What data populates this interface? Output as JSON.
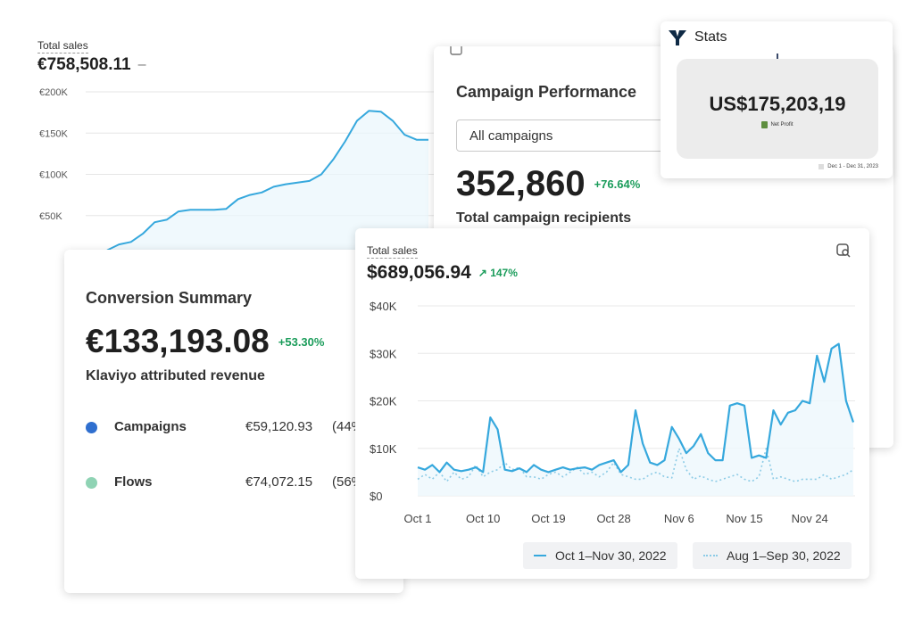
{
  "card_eur_sales": {
    "label": "Total sales",
    "amount": "€758,508.11",
    "dash": "–"
  },
  "card_campaign": {
    "title": "Campaign Performance",
    "select_value": "All campaigns",
    "amount": "352,860",
    "change": "+76.64%",
    "subtitle": "Total campaign recipients"
  },
  "card_stats": {
    "title": "Stats",
    "amount": "US$175,203,19",
    "caption": "Net Profit",
    "date_range": "Dec 1 - Dec 31, 2023"
  },
  "card_conversion": {
    "title": "Conversion Summary",
    "amount": "€133,193.08",
    "change": "+53.30%",
    "subtitle": "Klaviyo attributed revenue",
    "rows": [
      {
        "name": "Campaigns",
        "value": "€59,120.93",
        "pct": "(44%",
        "color": "#2f6fcf"
      },
      {
        "name": "Flows",
        "value": "€74,072.15",
        "pct": "(56%",
        "color": "#8fd3b4"
      }
    ]
  },
  "card_usd_sales": {
    "label": "Total sales",
    "amount": "$689,056.94",
    "change": "147%",
    "legend": {
      "current": "Oct 1–Nov 30, 2022",
      "previous": "Aug 1–Sep 30, 2022"
    }
  },
  "colors": {
    "line_primary": "#36a8dd",
    "line_secondary": "#8ccbe6",
    "accent_green": "#1a9c5a"
  },
  "chart_data": [
    {
      "type": "area",
      "title": "Total sales",
      "ylim": [
        0,
        200000
      ],
      "yticks": [
        "€200K",
        "€150K",
        "€100K",
        "€50K"
      ],
      "ytick_values": [
        200000,
        150000,
        100000,
        50000
      ],
      "x": [
        0,
        1,
        2,
        3,
        4,
        5,
        6,
        7,
        8,
        9,
        10,
        11,
        12,
        13,
        14,
        15,
        16,
        17,
        18,
        19,
        20,
        21,
        22,
        23,
        24,
        25,
        26,
        27
      ],
      "series": [
        {
          "values": [
            8000,
            15000,
            18000,
            28000,
            42000,
            45000,
            55000,
            57000,
            57000,
            57000,
            58000,
            70000,
            75000,
            78000,
            85000,
            88000,
            90000,
            92000,
            100000,
            118000,
            140000,
            165000,
            177000,
            176000,
            165000,
            148000,
            142000,
            142000
          ]
        }
      ]
    },
    {
      "type": "line",
      "title": "Total sales",
      "ylim": [
        0,
        40000
      ],
      "yticks": [
        "$40K",
        "$30K",
        "$20K",
        "$10K",
        "$0"
      ],
      "ytick_values": [
        40000,
        30000,
        20000,
        10000,
        0
      ],
      "xticks": [
        "Oct 1",
        "Oct 10",
        "Oct 19",
        "Oct 28",
        "Nov 6",
        "Nov 15",
        "Nov 24"
      ],
      "days": 61,
      "series": [
        {
          "name": "Oct 1–Nov 30, 2022",
          "style": "solid",
          "values": [
            6000,
            5500,
            6500,
            5000,
            7000,
            5500,
            5200,
            5500,
            6000,
            5000,
            16500,
            14000,
            5500,
            5200,
            5800,
            5000,
            6500,
            5500,
            5000,
            5500,
            6000,
            5500,
            5800,
            6000,
            5500,
            6500,
            7000,
            7500,
            5000,
            6500,
            18000,
            11000,
            7000,
            6500,
            7500,
            14500,
            12000,
            9000,
            10500,
            13000,
            9000,
            7500,
            7500,
            19000,
            19500,
            19000,
            8000,
            8500,
            8000,
            18000,
            15000,
            17500,
            18000,
            20000,
            19500,
            29500,
            24000,
            31000,
            32000,
            20000,
            15500
          ]
        },
        {
          "name": "Aug 1–Sep 30, 2022",
          "style": "dotted",
          "values": [
            3500,
            4500,
            3500,
            5000,
            3000,
            5000,
            3500,
            4000,
            6500,
            4000,
            5000,
            5500,
            7000,
            5500,
            6000,
            4000,
            4000,
            3500,
            4500,
            5000,
            4000,
            5000,
            6000,
            4500,
            5000,
            4000,
            5000,
            7000,
            4500,
            4000,
            3500,
            3500,
            4500,
            5000,
            4000,
            3800,
            10000,
            5500,
            3500,
            4200,
            3500,
            3000,
            3500,
            4000,
            4500,
            3500,
            3000,
            4000,
            10000,
            3500,
            4000,
            3500,
            3000,
            3500,
            3500,
            3500,
            4500,
            3500,
            4000,
            4500,
            5500
          ]
        }
      ]
    }
  ]
}
